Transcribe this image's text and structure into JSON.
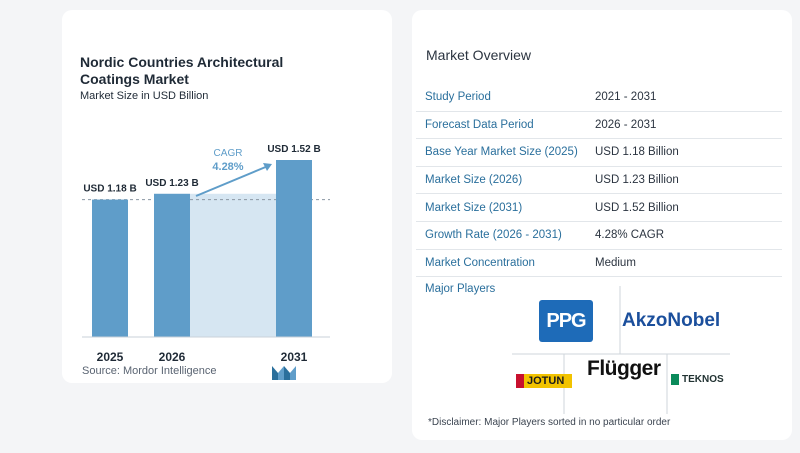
{
  "colors": {
    "bar": "#5f9dc9",
    "band": "#d6e6f2",
    "accent": "#2a6f9c",
    "cagr_text": "#5f9dc9"
  },
  "chart": {
    "title": "Nordic Countries Architectural Coatings Market",
    "subtitle": "Market Size in USD Billion",
    "source": "Source:  Mordor Intelligence",
    "cagr_label": "CAGR",
    "cagr_value": "4.28%"
  },
  "chart_data": {
    "type": "bar",
    "categories": [
      "2025",
      "2026",
      "2031"
    ],
    "values": [
      1.18,
      1.23,
      1.52
    ],
    "data_labels": [
      "USD 1.18 B",
      "USD 1.23 B",
      "USD 1.52 B"
    ],
    "title": "Nordic Countries Architectural Coatings Market",
    "subtitle": "Market Size in USD Billion",
    "xlabel": "",
    "ylabel": "",
    "ylim": [
      0,
      1.52
    ],
    "grid": false,
    "annotation": "CAGR 4.28%"
  },
  "overview": {
    "title": "Market Overview",
    "rows": [
      {
        "label": "Study Period",
        "value": "2021 - 2031"
      },
      {
        "label": "Forecast Data Period",
        "value": "2026 - 2031"
      },
      {
        "label": "Base Year Market Size (2025)",
        "value": "USD 1.18 Billion"
      },
      {
        "label": "Market Size (2026)",
        "value": "USD 1.23 Billion"
      },
      {
        "label": "Market Size (2031)",
        "value": "USD 1.52 Billion"
      },
      {
        "label": "Growth Rate (2026 - 2031)",
        "value": "4.28% CAGR"
      },
      {
        "label": "Market Concentration",
        "value": "Medium"
      }
    ],
    "players_label": "Major Players",
    "logos": {
      "ppg": "PPG",
      "akzonobel": "AkzoNobel",
      "flugger": "Flügger",
      "jotun": "JOTUN",
      "teknos": "TEKNOS"
    },
    "disclaimer": "*Disclaimer: Major Players sorted in no particular order"
  }
}
